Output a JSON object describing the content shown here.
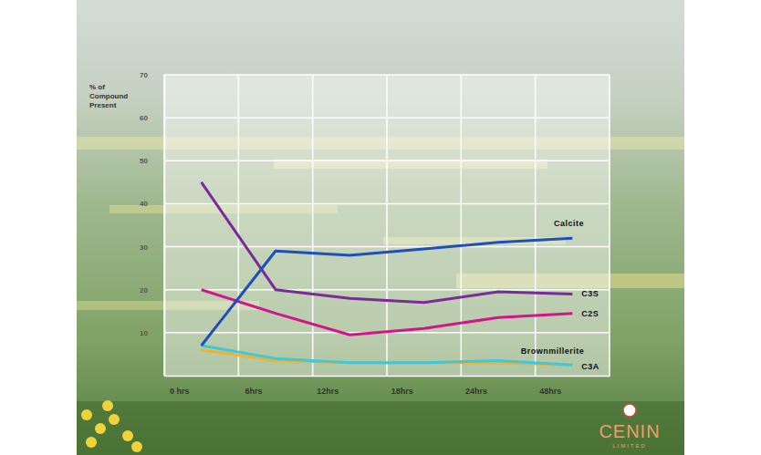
{
  "chart_data": {
    "type": "line",
    "y_label": [
      "% of",
      "Compound",
      "Present"
    ],
    "categories": [
      "0 hrs",
      "6hrs",
      "12hrs",
      "18hrs",
      "24hrs",
      "48hrs"
    ],
    "series": [
      {
        "name": "Calcite",
        "color": "#1f4fb8",
        "values": [
          7,
          29,
          28,
          29.5,
          31,
          32
        ]
      },
      {
        "name": "C3S",
        "color": "#7a2a9a",
        "values": [
          45,
          20,
          18,
          17,
          19.5,
          19
        ]
      },
      {
        "name": "C2S",
        "color": "#d4148c",
        "values": [
          20,
          14.5,
          9.5,
          11,
          13.5,
          14.5
        ]
      },
      {
        "name": "Brownmillerite",
        "color": "#40c8d8",
        "values": [
          7,
          4,
          3,
          3,
          3.5,
          2.5
        ]
      },
      {
        "name": "C3A",
        "color": "#f0b030",
        "values": [
          6,
          3.5,
          3,
          3,
          3,
          2.5
        ]
      }
    ],
    "ylim": [
      0,
      70
    ],
    "yticks": [
      10,
      20,
      30,
      40,
      50,
      60,
      70
    ],
    "grid": true,
    "annotations": [
      "CENIN",
      "LIMITED"
    ]
  }
}
